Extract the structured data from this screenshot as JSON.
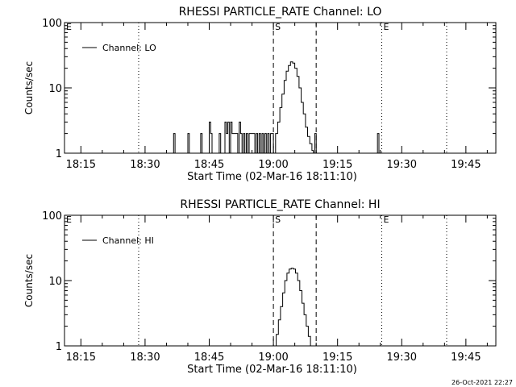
{
  "footer": {
    "timestamp": "26-Oct-2021 22:27"
  },
  "colors": {
    "background": "#ffffff",
    "ink": "#000000"
  },
  "chart_data": [
    {
      "type": "line",
      "title": "RHESSI PARTICLE_RATE Channel: LO",
      "xlabel": "Start Time (02-Mar-16 18:11:10)",
      "ylabel": "Counts/sec",
      "y_scale": "log",
      "ylim": [
        1,
        100
      ],
      "y_ticks": [
        {
          "value": 1,
          "label": "1"
        },
        {
          "value": 10,
          "label": "10"
        },
        {
          "value": 100,
          "label": "100"
        }
      ],
      "xlim": [
        "18:11:10",
        "19:52:00"
      ],
      "x_ticks": [
        "18:15",
        "18:30",
        "18:45",
        "19:00",
        "19:15",
        "19:30",
        "19:45"
      ],
      "legend": {
        "label": "Channel: LO",
        "placement": "top-left"
      },
      "markers": [
        {
          "label": "E",
          "time": "18:11:10",
          "style": "dotted"
        },
        {
          "label": "",
          "time": "18:28:30",
          "style": "dotted"
        },
        {
          "label": "S",
          "time": "19:00:00",
          "style": "dashed"
        },
        {
          "label": "",
          "time": "19:10:00",
          "style": "dashed"
        },
        {
          "label": "E",
          "time": "19:25:20",
          "style": "dotted"
        },
        {
          "label": "",
          "time": "19:40:30",
          "style": "dotted"
        }
      ],
      "series": [
        {
          "x": [
            "18:11:10",
            "18:31:40",
            "18:36:20",
            "18:36:40",
            "18:37:00",
            "18:39:40",
            "18:40:00",
            "18:40:20",
            "18:42:40",
            "18:43:00",
            "18:43:20",
            "18:44:40",
            "18:45:00",
            "18:45:20",
            "18:45:40",
            "18:47:00",
            "18:47:20",
            "18:47:40",
            "18:48:20",
            "18:48:40",
            "18:49:00",
            "18:49:20",
            "18:49:40",
            "18:50:00",
            "18:50:20",
            "18:51:40",
            "18:52:00",
            "18:52:20",
            "18:52:40",
            "18:53:00",
            "18:53:20",
            "18:53:40",
            "18:54:00",
            "18:54:20",
            "18:55:40",
            "18:56:00",
            "18:56:20",
            "18:56:40",
            "18:57:00",
            "18:57:20",
            "18:57:40",
            "18:58:00",
            "18:58:20",
            "18:58:40",
            "18:59:00",
            "18:59:20",
            "19:00:00",
            "19:00:30",
            "19:01:00",
            "19:01:30",
            "19:02:00",
            "19:02:30",
            "19:03:00",
            "19:03:30",
            "19:04:00",
            "19:04:30",
            "19:05:00",
            "19:05:30",
            "19:06:00",
            "19:06:30",
            "19:07:00",
            "19:07:30",
            "19:08:00",
            "19:08:30",
            "19:09:00",
            "19:09:20",
            "19:09:40",
            "19:10:00",
            "19:10:20",
            "19:10:40",
            "19:24:00",
            "19:24:20",
            "19:24:40",
            "19:52:00"
          ],
          "values": [
            1,
            1,
            1,
            2,
            1,
            1,
            2,
            1,
            1,
            2,
            1,
            1,
            3,
            2,
            1,
            1,
            2,
            1,
            1,
            3,
            2,
            3,
            1,
            3,
            2,
            1,
            3,
            2,
            1,
            2,
            1,
            2,
            1,
            2,
            1,
            2,
            1,
            2,
            1,
            2,
            1,
            2,
            1,
            2,
            1,
            2,
            1,
            2,
            3,
            5,
            8,
            13,
            18,
            22,
            25,
            24,
            20,
            15,
            10,
            6,
            4,
            2.5,
            1.8,
            1.4,
            1.1,
            1,
            2,
            1,
            1,
            1,
            1,
            2,
            1,
            1
          ]
        }
      ]
    },
    {
      "type": "line",
      "title": "RHESSI PARTICLE_RATE Channel: HI",
      "xlabel": "Start Time (02-Mar-16 18:11:10)",
      "ylabel": "Counts/sec",
      "y_scale": "log",
      "ylim": [
        1,
        100
      ],
      "y_ticks": [
        {
          "value": 1,
          "label": "1"
        },
        {
          "value": 10,
          "label": "10"
        },
        {
          "value": 100,
          "label": "100"
        }
      ],
      "xlim": [
        "18:11:10",
        "19:52:00"
      ],
      "x_ticks": [
        "18:15",
        "18:30",
        "18:45",
        "19:00",
        "19:15",
        "19:30",
        "19:45"
      ],
      "legend": {
        "label": "Channel: HI",
        "placement": "top-left"
      },
      "markers": [
        {
          "label": "E",
          "time": "18:11:10",
          "style": "dotted"
        },
        {
          "label": "",
          "time": "18:28:30",
          "style": "dotted"
        },
        {
          "label": "S",
          "time": "19:00:00",
          "style": "dashed"
        },
        {
          "label": "",
          "time": "19:10:00",
          "style": "dashed"
        },
        {
          "label": "E",
          "time": "19:25:20",
          "style": "dotted"
        },
        {
          "label": "",
          "time": "19:40:30",
          "style": "dotted"
        }
      ],
      "series": [
        {
          "x": [
            "19:00:10",
            "19:00:40",
            "19:01:10",
            "19:01:40",
            "19:02:10",
            "19:02:40",
            "19:03:10",
            "19:03:40",
            "19:04:10",
            "19:04:40",
            "19:05:10",
            "19:05:40",
            "19:06:10",
            "19:06:40",
            "19:07:10",
            "19:07:40",
            "19:08:10",
            "19:08:40"
          ],
          "values": [
            1,
            1.5,
            2.5,
            4,
            6.5,
            10,
            13,
            15,
            15.5,
            15,
            13,
            10,
            7,
            4.5,
            3,
            2,
            1.4,
            1
          ]
        }
      ]
    }
  ]
}
